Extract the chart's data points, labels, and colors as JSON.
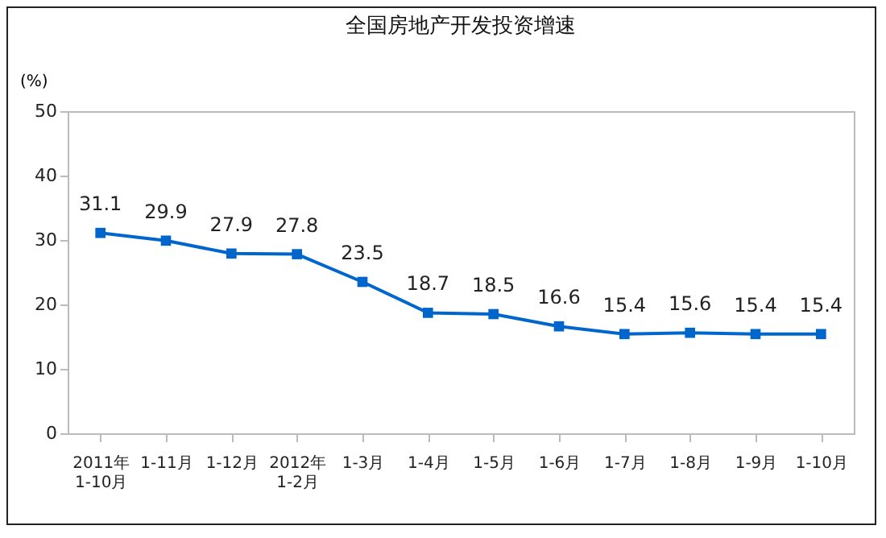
{
  "chart_data": {
    "type": "line",
    "title": "全国房地产开发投资增速",
    "ylabel": "(%)",
    "categories": [
      "2011年\n1-10月",
      "1-11月",
      "1-12月",
      "2012年\n1-2月",
      "1-3月",
      "1-4月",
      "1-5月",
      "1-6月",
      "1-7月",
      "1-8月",
      "1-9月",
      "1-10月"
    ],
    "series": [
      {
        "color": "#0066cc",
        "values": [
          31.1,
          29.9,
          27.9,
          27.8,
          23.5,
          18.7,
          18.5,
          16.6,
          15.4,
          15.6,
          15.4,
          15.4
        ]
      }
    ],
    "ylim": [
      0,
      50
    ],
    "yticks": [
      0,
      10,
      20,
      30,
      40,
      50
    ],
    "grid": false,
    "marker": "square",
    "data_labels": true
  }
}
